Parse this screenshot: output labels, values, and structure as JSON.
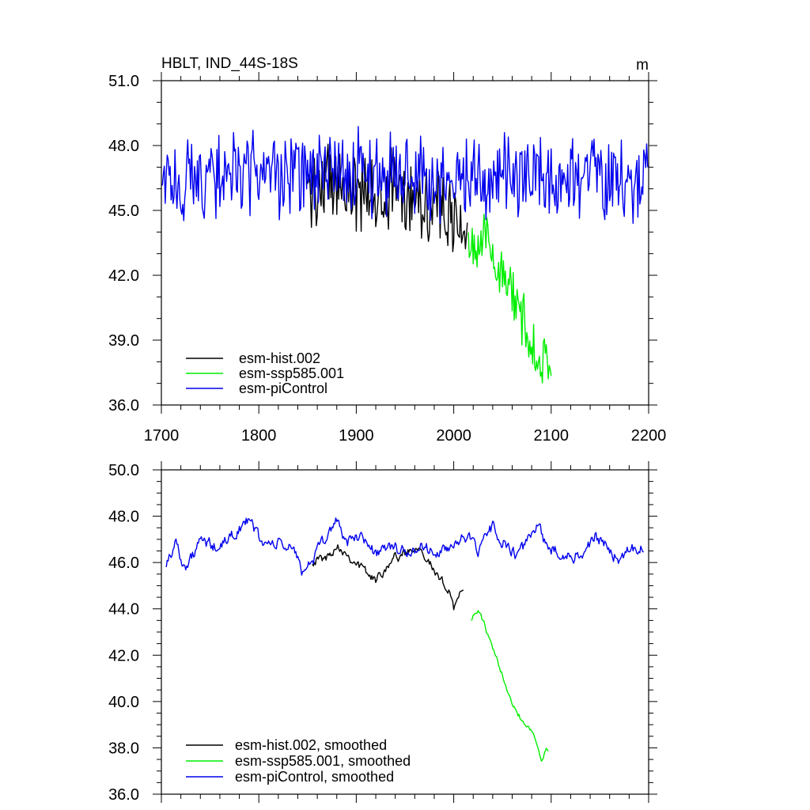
{
  "colors": {
    "hist": "#000000",
    "ssp": "#00ee00",
    "pic": "#0000ee",
    "axis": "#000000"
  },
  "chart_data": [
    {
      "type": "line",
      "title": "HBLT, IND_44S-18S",
      "units": "m",
      "xlim": [
        1700,
        2200
      ],
      "ylim": [
        36.0,
        51.0
      ],
      "xticks": [
        "1700",
        "1800",
        "1900",
        "2000",
        "2100",
        "2200"
      ],
      "xtick_values": [
        1700,
        1800,
        1900,
        2000,
        2100,
        2200
      ],
      "yticks": [
        "36.0",
        "39.0",
        "42.0",
        "45.0",
        "48.0",
        "51.0"
      ],
      "ytick_values": [
        36.0,
        39.0,
        42.0,
        45.0,
        48.0,
        51.0
      ],
      "legend_position": "bottom-left",
      "series": [
        {
          "name": "esm-hist.002",
          "color_key": "hist",
          "x_start": 1850,
          "x_end": 2014,
          "anchors": [
            [
              1850,
              46.0
            ],
            [
              1880,
              46.4
            ],
            [
              1910,
              45.6
            ],
            [
              1940,
              45.9
            ],
            [
              1960,
              45.9
            ],
            [
              1980,
              45.2
            ],
            [
              2000,
              44.4
            ],
            [
              2014,
              44.2
            ]
          ],
          "noise": 1.55
        },
        {
          "name": "esm-ssp585.001",
          "color_key": "ssp",
          "x_start": 2015,
          "x_end": 2100,
          "anchors": [
            [
              2015,
              43.5
            ],
            [
              2030,
              43.8
            ],
            [
              2045,
              42.5
            ],
            [
              2060,
              41.0
            ],
            [
              2075,
              39.5
            ],
            [
              2090,
              38.0
            ],
            [
              2100,
              37.9
            ]
          ],
          "noise": 1.05
        },
        {
          "name": "esm-piControl",
          "color_key": "pic",
          "x_start": 1701,
          "x_end": 2199,
          "anchors": [
            [
              1701,
              46.2
            ],
            [
              1750,
              46.6
            ],
            [
              1800,
              46.7
            ],
            [
              1850,
              46.5
            ],
            [
              1900,
              46.8
            ],
            [
              1950,
              46.7
            ],
            [
              2000,
              46.4
            ],
            [
              2050,
              46.5
            ],
            [
              2100,
              46.6
            ],
            [
              2150,
              46.6
            ],
            [
              2199,
              46.5
            ]
          ],
          "noise": 1.6
        }
      ]
    },
    {
      "type": "line",
      "xlim": [
        1700,
        2200
      ],
      "ylim": [
        36.0,
        50.0
      ],
      "xtick_values": [
        1700,
        1800,
        1900,
        2000,
        2100,
        2200
      ],
      "yticks": [
        "36.0",
        "38.0",
        "40.0",
        "42.0",
        "44.0",
        "46.0",
        "48.0",
        "50.0"
      ],
      "ytick_values": [
        36.0,
        38.0,
        40.0,
        42.0,
        44.0,
        46.0,
        48.0,
        50.0
      ],
      "legend_position": "bottom-left",
      "series": [
        {
          "name": "esm-hist.002, smoothed",
          "color_key": "hist",
          "x_start": 1855,
          "x_end": 2010,
          "anchors": [
            [
              1855,
              46.1
            ],
            [
              1870,
              46.2
            ],
            [
              1880,
              46.8
            ],
            [
              1895,
              46.2
            ],
            [
              1920,
              45.2
            ],
            [
              1935,
              46.1
            ],
            [
              1950,
              46.4
            ],
            [
              1965,
              46.8
            ],
            [
              1975,
              46.0
            ],
            [
              1985,
              45.2
            ],
            [
              1995,
              44.9
            ],
            [
              2000,
              44.1
            ],
            [
              2005,
              44.6
            ],
            [
              2010,
              44.6
            ]
          ],
          "noise": 0.35
        },
        {
          "name": "esm-ssp585.001, smoothed",
          "color_key": "ssp",
          "x_start": 2018,
          "x_end": 2097,
          "anchors": [
            [
              2018,
              43.6
            ],
            [
              2025,
              43.9
            ],
            [
              2030,
              43.5
            ],
            [
              2040,
              42.2
            ],
            [
              2050,
              41.2
            ],
            [
              2060,
              40.0
            ],
            [
              2070,
              39.2
            ],
            [
              2080,
              38.8
            ],
            [
              2090,
              37.6
            ],
            [
              2097,
              37.9
            ]
          ],
          "noise": 0.22
        },
        {
          "name": "esm-piControl, smoothed",
          "color_key": "pic",
          "x_start": 1705,
          "x_end": 2195,
          "anchors": [
            [
              1705,
              46.0
            ],
            [
              1715,
              46.9
            ],
            [
              1725,
              45.7
            ],
            [
              1740,
              46.9
            ],
            [
              1760,
              46.6
            ],
            [
              1775,
              47.3
            ],
            [
              1790,
              47.8
            ],
            [
              1805,
              46.8
            ],
            [
              1820,
              46.8
            ],
            [
              1835,
              46.6
            ],
            [
              1845,
              45.6
            ],
            [
              1860,
              46.4
            ],
            [
              1880,
              47.9
            ],
            [
              1890,
              46.8
            ],
            [
              1905,
              47.2
            ],
            [
              1920,
              46.4
            ],
            [
              1935,
              46.7
            ],
            [
              1950,
              46.4
            ],
            [
              1970,
              46.7
            ],
            [
              1985,
              46.3
            ],
            [
              2000,
              46.8
            ],
            [
              2010,
              47.3
            ],
            [
              2025,
              46.4
            ],
            [
              2040,
              47.6
            ],
            [
              2050,
              46.9
            ],
            [
              2065,
              46.2
            ],
            [
              2085,
              47.6
            ],
            [
              2095,
              46.8
            ],
            [
              2110,
              46.3
            ],
            [
              2130,
              46.3
            ],
            [
              2145,
              47.1
            ],
            [
              2160,
              46.6
            ],
            [
              2170,
              46.1
            ],
            [
              2180,
              46.7
            ],
            [
              2195,
              46.6
            ]
          ],
          "noise": 0.45
        }
      ]
    }
  ]
}
